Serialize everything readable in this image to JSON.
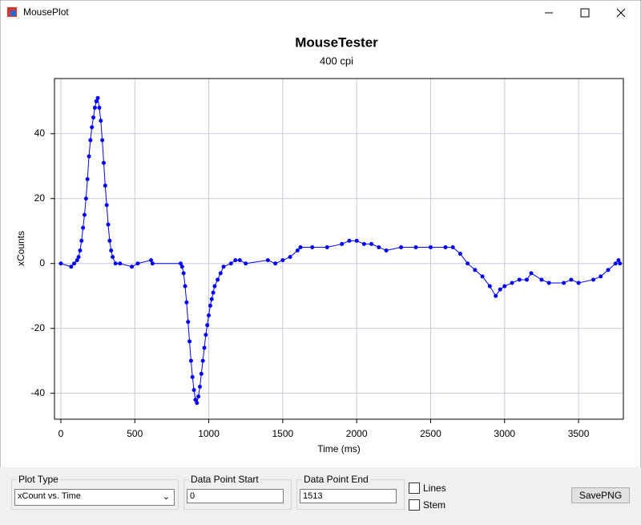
{
  "window": {
    "title": "MousePlot"
  },
  "chart_data": {
    "type": "scatter",
    "title": "MouseTester",
    "subtitle": "400 cpi",
    "x_label": "Time (ms)",
    "y_label": "xCounts",
    "color": "#0000ff",
    "line": true,
    "grid": true,
    "xlim": [
      -43,
      3803
    ],
    "ylim": [
      -48,
      57
    ],
    "xticks": [
      0,
      500,
      1000,
      1500,
      2000,
      2500,
      3000,
      3500
    ],
    "yticks": [
      -40,
      -20,
      0,
      20,
      40
    ],
    "x": [
      0,
      70,
      90,
      110,
      120,
      130,
      140,
      150,
      160,
      170,
      180,
      190,
      200,
      210,
      220,
      230,
      240,
      250,
      260,
      270,
      280,
      290,
      300,
      310,
      320,
      330,
      340,
      350,
      370,
      400,
      480,
      520,
      610,
      620,
      810,
      820,
      830,
      840,
      850,
      860,
      870,
      880,
      890,
      900,
      910,
      920,
      930,
      940,
      950,
      960,
      970,
      980,
      990,
      1000,
      1010,
      1020,
      1030,
      1040,
      1060,
      1080,
      1100,
      1150,
      1180,
      1210,
      1250,
      1400,
      1450,
      1500,
      1550,
      1600,
      1620,
      1700,
      1800,
      1900,
      1950,
      2000,
      2050,
      2100,
      2150,
      2200,
      2300,
      2400,
      2500,
      2600,
      2650,
      2700,
      2750,
      2800,
      2850,
      2900,
      2940,
      2970,
      3000,
      3050,
      3100,
      3150,
      3180,
      3250,
      3300,
      3400,
      3450,
      3500,
      3600,
      3650,
      3700,
      3750,
      3770,
      3780
    ],
    "values": [
      0,
      -1,
      0,
      1,
      2,
      4,
      7,
      11,
      15,
      20,
      26,
      33,
      38,
      42,
      45,
      48,
      50,
      51,
      48,
      44,
      38,
      31,
      24,
      18,
      12,
      7,
      4,
      2,
      0,
      0,
      -1,
      0,
      1,
      0,
      0,
      -1,
      -3,
      -7,
      -12,
      -18,
      -24,
      -30,
      -35,
      -39,
      -42,
      -43,
      -41,
      -38,
      -34,
      -30,
      -26,
      -22,
      -19,
      -16,
      -13,
      -11,
      -9,
      -7,
      -5,
      -3,
      -1,
      0,
      1,
      1,
      0,
      1,
      0,
      1,
      2,
      4,
      5,
      5,
      5,
      6,
      7,
      7,
      6,
      6,
      5,
      4,
      5,
      5,
      5,
      5,
      5,
      3,
      0,
      -2,
      -4,
      -7,
      -10,
      -8,
      -7,
      -6,
      -5,
      -5,
      -3,
      -5,
      -6,
      -6,
      -5,
      -6,
      -5,
      -4,
      -2,
      0,
      1,
      0
    ]
  },
  "controls": {
    "plot_type": {
      "label": "Plot Type",
      "value": "xCount vs. Time"
    },
    "start": {
      "label": "Data Point Start",
      "value": "0"
    },
    "end": {
      "label": "Data Point End",
      "value": "1513"
    },
    "lines": "Lines",
    "stem": "Stem",
    "save": "SavePNG"
  }
}
